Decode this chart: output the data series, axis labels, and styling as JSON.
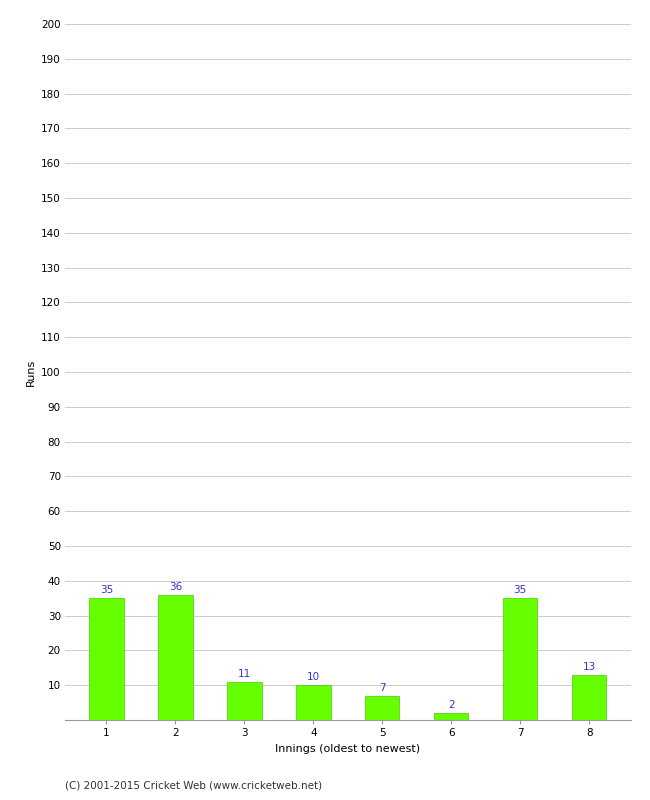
{
  "categories": [
    "1",
    "2",
    "3",
    "4",
    "5",
    "6",
    "7",
    "8"
  ],
  "values": [
    35,
    36,
    11,
    10,
    7,
    2,
    35,
    13
  ],
  "bar_color": "#66FF00",
  "bar_edge_color": "#44CC00",
  "label_color": "#3333CC",
  "xlabel": "Innings (oldest to newest)",
  "ylabel": "Runs",
  "ylim": [
    0,
    200
  ],
  "yticks": [
    0,
    10,
    20,
    30,
    40,
    50,
    60,
    70,
    80,
    90,
    100,
    110,
    120,
    130,
    140,
    150,
    160,
    170,
    180,
    190,
    200
  ],
  "footer": "(C) 2001-2015 Cricket Web (www.cricketweb.net)",
  "background_color": "#FFFFFF",
  "grid_color": "#CCCCCC",
  "bar_width": 0.5,
  "label_fontsize": 7.5,
  "axis_label_fontsize": 8,
  "tick_fontsize": 7.5,
  "footer_fontsize": 7.5
}
